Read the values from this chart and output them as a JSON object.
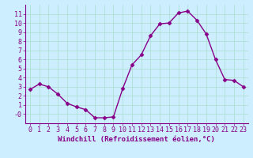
{
  "x": [
    0,
    1,
    2,
    3,
    4,
    5,
    6,
    7,
    8,
    9,
    10,
    11,
    12,
    13,
    14,
    15,
    16,
    17,
    18,
    19,
    20,
    21,
    22,
    23
  ],
  "y": [
    2.7,
    3.3,
    3.0,
    2.2,
    1.2,
    0.8,
    0.5,
    -0.4,
    -0.4,
    -0.3,
    2.8,
    5.4,
    6.5,
    8.6,
    9.9,
    10.0,
    11.1,
    11.3,
    10.3,
    8.8,
    6.0,
    3.8,
    3.7,
    3.0
  ],
  "line_color": "#880088",
  "marker": "D",
  "marker_size": 2.5,
  "bg_color": "#cceeff",
  "grid_color": "#aaddcc",
  "xlabel": "Windchill (Refroidissement éolien,°C)",
  "ylim": [
    -1,
    12
  ],
  "xlim": [
    -0.5,
    23.5
  ],
  "yticks": [
    0,
    1,
    2,
    3,
    4,
    5,
    6,
    7,
    8,
    9,
    10,
    11
  ],
  "xticks": [
    0,
    1,
    2,
    3,
    4,
    5,
    6,
    7,
    8,
    9,
    10,
    11,
    12,
    13,
    14,
    15,
    16,
    17,
    18,
    19,
    20,
    21,
    22,
    23
  ],
  "tick_color": "#880088",
  "label_color": "#880088",
  "spine_color": "#880088",
  "font_size": 6,
  "xlabel_fontsize": 6.5,
  "linewidth": 1.0
}
